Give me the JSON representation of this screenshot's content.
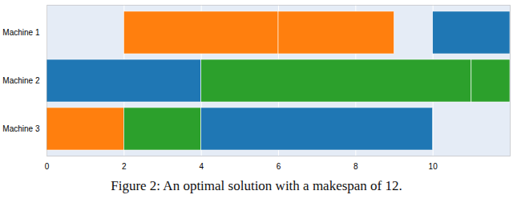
{
  "chart_data": {
    "type": "gantt",
    "caption": "Figure 2: An optimal solution with a makespan of 12.",
    "categories": [
      "Machine 1",
      "Machine 2",
      "Machine 3"
    ],
    "tasks": [
      {
        "category": "Machine 1",
        "start": 2,
        "end": 6,
        "color": "#ff7f0e"
      },
      {
        "category": "Machine 1",
        "start": 6,
        "end": 9,
        "color": "#ff7f0e"
      },
      {
        "category": "Machine 1",
        "start": 10,
        "end": 12,
        "color": "#1f77b4"
      },
      {
        "category": "Machine 2",
        "start": 0,
        "end": 4,
        "color": "#1f77b4"
      },
      {
        "category": "Machine 2",
        "start": 4,
        "end": 11,
        "color": "#2ca02c"
      },
      {
        "category": "Machine 2",
        "start": 11,
        "end": 12,
        "color": "#2ca02c"
      },
      {
        "category": "Machine 3",
        "start": 0,
        "end": 2,
        "color": "#ff7f0e"
      },
      {
        "category": "Machine 3",
        "start": 2,
        "end": 4,
        "color": "#2ca02c"
      },
      {
        "category": "Machine 3",
        "start": 4,
        "end": 10,
        "color": "#1f77b4"
      }
    ],
    "xlim": [
      0,
      12
    ],
    "xticks": [
      0,
      2,
      4,
      6,
      8,
      10
    ],
    "grid": true
  }
}
